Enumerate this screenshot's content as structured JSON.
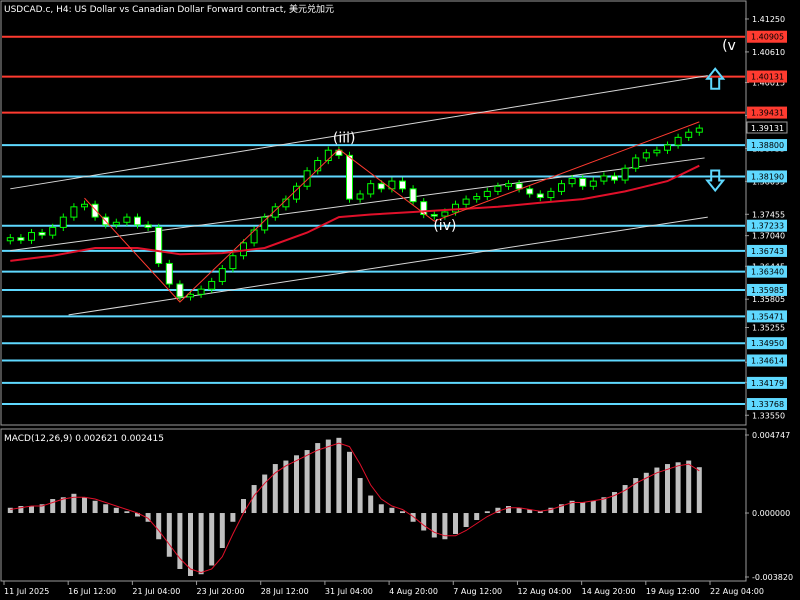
{
  "chart_data": [
    {
      "type": "candlestick",
      "title": "USDCAD.c, H4:  US Dollar vs Canadian Dollar Forward contract, 美元兑加元",
      "ylim": [
        1.3338,
        1.4158
      ],
      "price_ticks": [
        "1.41250",
        "1.40610",
        "1.40015",
        "1.39375",
        "1.38735",
        "1.38095",
        "1.37455",
        "1.37040",
        "1.36445",
        "1.35805",
        "1.35255",
        "1.34580",
        "1.34190",
        "1.33550"
      ],
      "x_labels": [
        "11 Jul 2025",
        "16 Jul 12:00",
        "21 Jul 04:00",
        "23 Jul 20:00",
        "28 Jul 12:00",
        "31 Jul 04:00",
        "4 Aug 20:00",
        "7 Aug 12:00",
        "12 Aug 04:00",
        "14 Aug 20:00",
        "19 Aug 12:00",
        "22 Aug 04:00"
      ],
      "current_price": "1.39131",
      "horizontal_levels": [
        {
          "value": 1.40905,
          "label": "1.40905",
          "color": "#ff3b30"
        },
        {
          "value": 1.40131,
          "label": "1.40131",
          "color": "#ff3b30"
        },
        {
          "value": 1.39431,
          "label": "1.39431",
          "color": "#ff3b30"
        },
        {
          "value": 1.388,
          "label": "1.38800",
          "color": "#5fd9ff"
        },
        {
          "value": 1.3819,
          "label": "1.38190",
          "color": "#5fd9ff"
        },
        {
          "value": 1.37233,
          "label": "1.37233",
          "color": "#5fd9ff"
        },
        {
          "value": 1.36743,
          "label": "1.36743",
          "color": "#5fd9ff"
        },
        {
          "value": 1.3634,
          "label": "1.36340",
          "color": "#5fd9ff"
        },
        {
          "value": 1.35985,
          "label": "1.35985",
          "color": "#5fd9ff"
        },
        {
          "value": 1.35471,
          "label": "1.35471",
          "color": "#5fd9ff"
        },
        {
          "value": 1.3495,
          "label": "1.34950",
          "color": "#5fd9ff"
        },
        {
          "value": 1.34614,
          "label": "1.34614",
          "color": "#5fd9ff"
        },
        {
          "value": 1.34179,
          "label": "1.34179",
          "color": "#5fd9ff"
        },
        {
          "value": 1.33768,
          "label": "1.33768",
          "color": "#5fd9ff"
        }
      ],
      "wave_labels": [
        {
          "text": "(iii)",
          "x": 31.5,
          "y": 1.3885
        },
        {
          "text": "(iv)",
          "x": 41.0,
          "y": 1.3715
        },
        {
          "text": "(v",
          "x": 67.8,
          "y": 1.4065
        }
      ],
      "trend_channel": [
        {
          "x1": 0,
          "y1": 1.3795,
          "x2": 65.8,
          "y2": 1.4015
        },
        {
          "x1": 0,
          "y1": 1.3675,
          "x2": 65.5,
          "y2": 1.3855
        },
        {
          "x1": 5.5,
          "y1": 1.355,
          "x2": 65.8,
          "y2": 1.374
        }
      ],
      "arrows": [
        {
          "direction": "up",
          "x": 66.5,
          "y": 1.4005,
          "color": "#5fd9ff"
        },
        {
          "direction": "down",
          "x": 66.5,
          "y": 1.3815,
          "color": "#5fd9ff"
        }
      ],
      "moving_average": {
        "color": "#e0102a",
        "x": [
          0,
          4,
          8,
          12,
          16,
          20,
          24,
          28,
          31,
          34,
          38,
          42,
          46,
          50,
          54,
          58,
          62,
          65
        ],
        "y": [
          1.3655,
          1.3665,
          1.368,
          1.368,
          1.3668,
          1.367,
          1.368,
          1.371,
          1.374,
          1.3745,
          1.375,
          1.3755,
          1.376,
          1.3768,
          1.3775,
          1.379,
          1.381,
          1.384
        ]
      },
      "candles_close": [
        1.37,
        1.3695,
        1.371,
        1.3705,
        1.372,
        1.374,
        1.376,
        1.3765,
        1.374,
        1.3725,
        1.373,
        1.374,
        1.3725,
        1.372,
        1.365,
        1.361,
        1.3585,
        1.359,
        1.36,
        1.3615,
        1.364,
        1.3665,
        1.369,
        1.3715,
        1.374,
        1.376,
        1.3775,
        1.38,
        1.383,
        1.385,
        1.387,
        1.386,
        1.3775,
        1.3785,
        1.3805,
        1.3795,
        1.381,
        1.3795,
        1.377,
        1.3745,
        1.3742,
        1.375,
        1.3765,
        1.3775,
        1.378,
        1.379,
        1.38,
        1.3805,
        1.3795,
        1.3785,
        1.3778,
        1.379,
        1.3805,
        1.3815,
        1.38,
        1.381,
        1.382,
        1.3812,
        1.3835,
        1.3855,
        1.3865,
        1.387,
        1.388,
        1.3895,
        1.3905,
        1.3913
      ],
      "macd": {
        "label": "MACD(12,26,9) 0.002621 0.002415",
        "ylim": [
          -0.00383,
          0.004747
        ],
        "ticks": [
          "0.004747",
          "0.000000",
          "-0.003820"
        ],
        "histogram": [
          0.0003,
          0.0004,
          0.0004,
          0.0005,
          0.0008,
          0.0009,
          0.0011,
          0.0009,
          0.0007,
          0.0005,
          0.0003,
          0.0001,
          -0.0002,
          -0.0005,
          -0.0015,
          -0.0025,
          -0.0032,
          -0.0036,
          -0.0035,
          -0.003,
          -0.002,
          -0.0005,
          0.0008,
          0.0016,
          0.0022,
          0.0028,
          0.003,
          0.0033,
          0.0036,
          0.004,
          0.0042,
          0.0043,
          0.0035,
          0.002,
          0.001,
          0.0005,
          0.0003,
          0.0001,
          -0.0005,
          -0.001,
          -0.0014,
          -0.0015,
          -0.0012,
          -0.0008,
          -0.0004,
          0.0001,
          0.0003,
          0.0004,
          0.0003,
          0.0002,
          0.0001,
          0.0003,
          0.0005,
          0.0007,
          0.0006,
          0.0007,
          0.0009,
          0.0012,
          0.0016,
          0.002,
          0.0023,
          0.0026,
          0.0028,
          0.0029,
          0.003,
          0.00262
        ],
        "signal": [
          0.0002,
          0.0003,
          0.0004,
          0.0004,
          0.0006,
          0.0008,
          0.0009,
          0.0009,
          0.0008,
          0.0006,
          0.0004,
          0.0002,
          0.0,
          -0.0003,
          -0.001,
          -0.0018,
          -0.0026,
          -0.0032,
          -0.0034,
          -0.0032,
          -0.0025,
          -0.0012,
          0.0,
          0.001,
          0.0017,
          0.0023,
          0.0027,
          0.003,
          0.0033,
          0.0036,
          0.0038,
          0.004,
          0.0038,
          0.0028,
          0.0016,
          0.0008,
          0.0004,
          0.0002,
          -0.0002,
          -0.0007,
          -0.0011,
          -0.0013,
          -0.0013,
          -0.001,
          -0.0006,
          -0.0002,
          0.0001,
          0.0003,
          0.0003,
          0.0002,
          0.0001,
          0.0002,
          0.0004,
          0.0006,
          0.0006,
          0.0007,
          0.0008,
          0.001,
          0.0013,
          0.0017,
          0.002,
          0.0023,
          0.0025,
          0.0027,
          0.0028,
          0.002415
        ]
      }
    }
  ]
}
